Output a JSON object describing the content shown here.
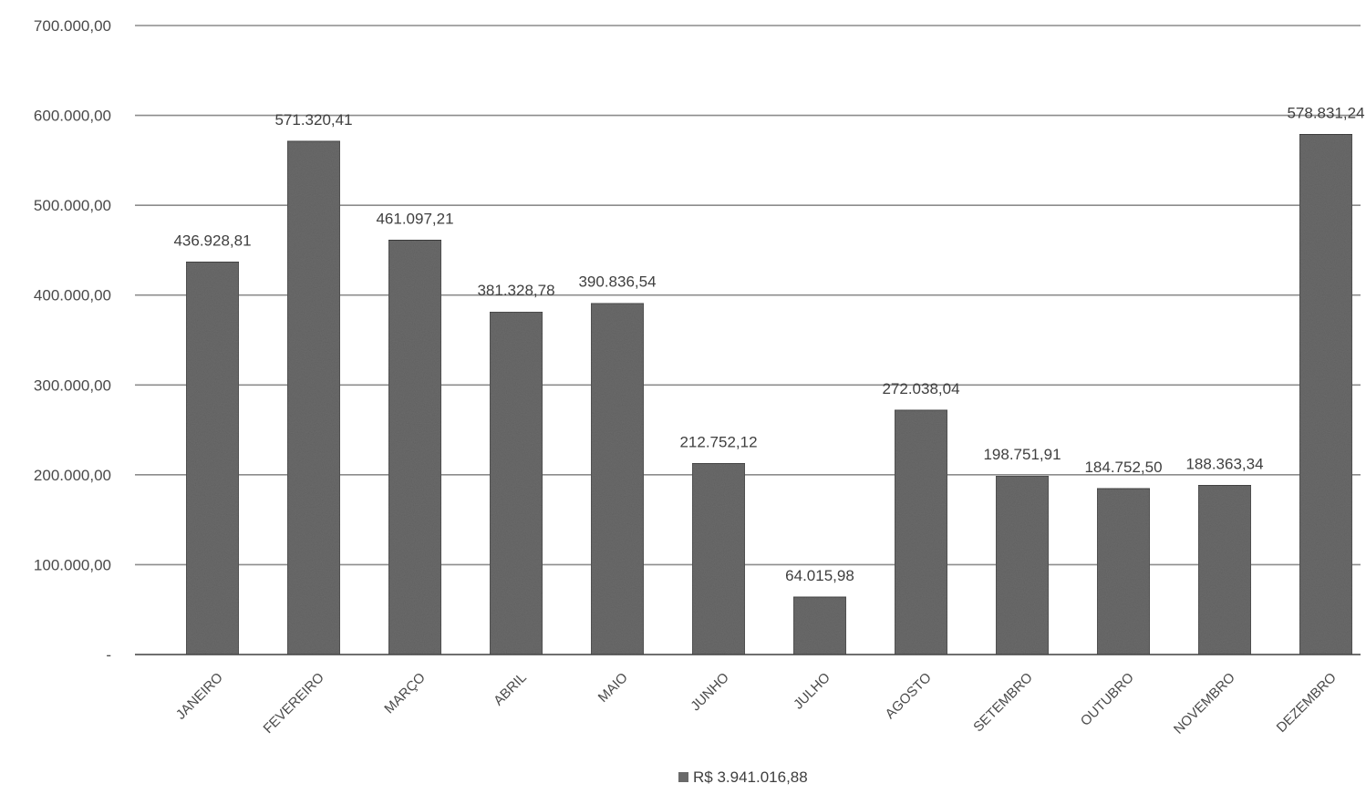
{
  "chart_data": {
    "type": "bar",
    "categories": [
      "JANEIRO",
      "FEVEREIRO",
      "MARÇO",
      "ABRIL",
      "MAIO",
      "JUNHO",
      "JULHO",
      "AGOSTO",
      "SETEMBRO",
      "OUTUBRO",
      "NOVEMBRO",
      "DEZEMBRO"
    ],
    "series": [
      {
        "name": "R$ 3.941.016,88",
        "values": [
          436928.81,
          571320.41,
          461097.21,
          381328.78,
          390836.54,
          212752.12,
          64015.98,
          272038.04,
          198751.91,
          184752.5,
          188363.34,
          578831.24
        ],
        "labels": [
          "436.928,81",
          "571.320,41",
          "461.097,21",
          "381.328,78",
          "390.836,54",
          "212.752,12",
          "64.015,98",
          "272.038,04",
          "198.751,91",
          "184.752,50",
          "188.363,34",
          "578.831,24"
        ]
      }
    ],
    "ylim": [
      0,
      700000
    ],
    "yticks": [
      0,
      100000,
      200000,
      300000,
      400000,
      500000,
      600000,
      700000
    ],
    "ytick_labels": [
      "-",
      "100.000,00",
      "200.000,00",
      "300.000,00",
      "400.000,00",
      "500.000,00",
      "600.000,00",
      "700.000,00"
    ],
    "grid": true,
    "legend_position": "bottom",
    "colors": {
      "bar": "#6a6a6a",
      "grid": "#8c8c8c",
      "text": "#3f3f3f"
    }
  }
}
